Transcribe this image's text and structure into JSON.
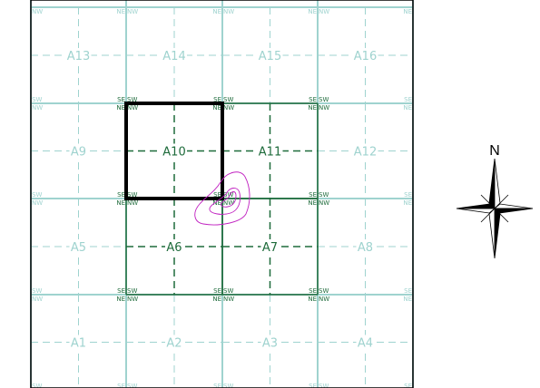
{
  "colors": {
    "grid_light": "#9fd3cf",
    "grid_dark": "#1e6b3b",
    "highlight": "#000000",
    "contour": "#c020c0",
    "compass": "#000000"
  },
  "cells": [
    {
      "label": "A13",
      "active": false
    },
    {
      "label": "A14",
      "active": false
    },
    {
      "label": "A15",
      "active": false
    },
    {
      "label": "A16",
      "active": false
    },
    {
      "label": "A9",
      "active": false
    },
    {
      "label": "A10",
      "active": true
    },
    {
      "label": "A11",
      "active": true
    },
    {
      "label": "A12",
      "active": false
    },
    {
      "label": "A5",
      "active": false
    },
    {
      "label": "A6",
      "active": true
    },
    {
      "label": "A7",
      "active": true
    },
    {
      "label": "A8",
      "active": false
    },
    {
      "label": "A1",
      "active": false
    },
    {
      "label": "A2",
      "active": false
    },
    {
      "label": "A3",
      "active": false
    },
    {
      "label": "A4",
      "active": false
    }
  ],
  "highlighted_cell": "A10",
  "corner_labels": {
    "se": "SE",
    "sw": "SW",
    "ne": "NE",
    "nw": "NW"
  },
  "compass": {
    "label": "N",
    "icon": "compass-rose-icon"
  }
}
